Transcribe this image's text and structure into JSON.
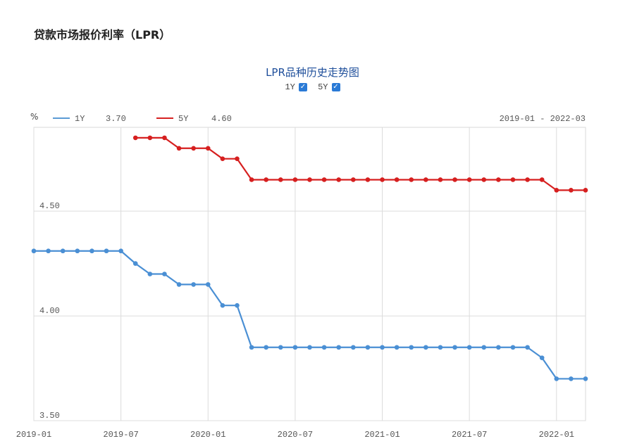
{
  "page_title": "贷款市场报价利率（LPR）",
  "chart_title": "LPR品种历史走势图",
  "toggles": [
    {
      "label": "1Y",
      "checked": true
    },
    {
      "label": "5Y",
      "checked": true
    }
  ],
  "legend": {
    "unit": "%",
    "items": [
      {
        "name": "1Y",
        "latest": "3.70",
        "color": "#5b9bd5"
      },
      {
        "name": "5Y",
        "latest": "4.60",
        "color": "#d62222"
      }
    ],
    "range": "2019-01 - 2022-03"
  },
  "colors": {
    "series_1y": "#4a8fd4",
    "series_5y": "#d61f1f",
    "grid": "#d9d9d9",
    "title": "#1f4f9b"
  },
  "chart_data": {
    "type": "line",
    "xlabel": "",
    "ylabel": "%",
    "xlim": [
      "2019-01",
      "2022-03"
    ],
    "ylim": [
      3.5,
      4.9
    ],
    "grid": true,
    "legend_position": "top",
    "x_ticks": [
      "2019-01",
      "2019-07",
      "2020-01",
      "2020-07",
      "2021-01",
      "2021-07",
      "2022-01"
    ],
    "y_ticks": [
      "3.50",
      "4.00",
      "4.50"
    ],
    "series": [
      {
        "name": "1Y",
        "color": "#4a8fd4",
        "x": [
          "2019-01",
          "2019-02",
          "2019-03",
          "2019-04",
          "2019-05",
          "2019-06",
          "2019-07",
          "2019-08",
          "2019-09",
          "2019-10",
          "2019-11",
          "2019-12",
          "2020-01",
          "2020-02",
          "2020-03",
          "2020-04",
          "2020-05",
          "2020-06",
          "2020-07",
          "2020-08",
          "2020-09",
          "2020-10",
          "2020-11",
          "2020-12",
          "2021-01",
          "2021-02",
          "2021-03",
          "2021-04",
          "2021-05",
          "2021-06",
          "2021-07",
          "2021-08",
          "2021-09",
          "2021-10",
          "2021-11",
          "2021-12",
          "2022-01",
          "2022-02",
          "2022-03"
        ],
        "values": [
          4.31,
          4.31,
          4.31,
          4.31,
          4.31,
          4.31,
          4.31,
          4.25,
          4.2,
          4.2,
          4.15,
          4.15,
          4.15,
          4.05,
          4.05,
          3.85,
          3.85,
          3.85,
          3.85,
          3.85,
          3.85,
          3.85,
          3.85,
          3.85,
          3.85,
          3.85,
          3.85,
          3.85,
          3.85,
          3.85,
          3.85,
          3.85,
          3.85,
          3.85,
          3.85,
          3.8,
          3.7,
          3.7,
          3.7
        ]
      },
      {
        "name": "5Y",
        "color": "#d61f1f",
        "x": [
          "2019-08",
          "2019-09",
          "2019-10",
          "2019-11",
          "2019-12",
          "2020-01",
          "2020-02",
          "2020-03",
          "2020-04",
          "2020-05",
          "2020-06",
          "2020-07",
          "2020-08",
          "2020-09",
          "2020-10",
          "2020-11",
          "2020-12",
          "2021-01",
          "2021-02",
          "2021-03",
          "2021-04",
          "2021-05",
          "2021-06",
          "2021-07",
          "2021-08",
          "2021-09",
          "2021-10",
          "2021-11",
          "2021-12",
          "2022-01",
          "2022-02",
          "2022-03"
        ],
        "values": [
          4.85,
          4.85,
          4.85,
          4.8,
          4.8,
          4.8,
          4.75,
          4.75,
          4.65,
          4.65,
          4.65,
          4.65,
          4.65,
          4.65,
          4.65,
          4.65,
          4.65,
          4.65,
          4.65,
          4.65,
          4.65,
          4.65,
          4.65,
          4.65,
          4.65,
          4.65,
          4.65,
          4.65,
          4.65,
          4.6,
          4.6,
          4.6
        ]
      }
    ]
  }
}
